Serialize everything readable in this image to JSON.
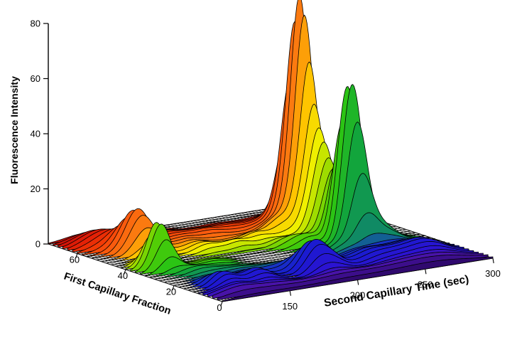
{
  "chart_data": {
    "type": "surface-waterfall-3d",
    "title": "",
    "background": "#FFFFFF",
    "line_color": "#000000",
    "floor_grid": true,
    "z_axis": {
      "label": "Fluorescence Intensity",
      "ticks": [
        0,
        20,
        40,
        60,
        80
      ],
      "range": [
        0,
        80
      ]
    },
    "time_axis": {
      "label": "Second Capillary Time (sec)",
      "ticks": [
        150,
        200,
        250,
        300
      ],
      "range": [
        100,
        300
      ]
    },
    "fraction_axis": {
      "label": "First Capillary Fraction",
      "ticks": [
        0,
        20,
        40,
        60
      ],
      "range": [
        0,
        72
      ]
    },
    "trace_step": 2,
    "colormap": [
      [
        0,
        "#30096E"
      ],
      [
        4,
        "#4813A8"
      ],
      [
        8,
        "#2B13D2"
      ],
      [
        14,
        "#1B1BD0"
      ],
      [
        20,
        "#1633C4"
      ],
      [
        24,
        "#108A64"
      ],
      [
        28,
        "#12A53C"
      ],
      [
        32,
        "#2BC414"
      ],
      [
        36,
        "#52CE06"
      ],
      [
        40,
        "#9EDC00"
      ],
      [
        44,
        "#EFEF00"
      ],
      [
        48,
        "#FFC400"
      ],
      [
        52,
        "#FB7A10"
      ],
      [
        56,
        "#F95A0E"
      ],
      [
        60,
        "#F23A06"
      ],
      [
        64,
        "#E42106"
      ],
      [
        68,
        "#D41408"
      ],
      [
        72,
        "#C4100A"
      ]
    ],
    "peak_format": [
      "fraction",
      "time_sec",
      "intensity",
      "sigma_fraction",
      "sigma_time"
    ],
    "peaks": [
      [
        52,
        250,
        74,
        4,
        6.5
      ],
      [
        52,
        249,
        9,
        6,
        15
      ],
      [
        42,
        250,
        28,
        4,
        8
      ],
      [
        31,
        246,
        34,
        3.5,
        5.5
      ],
      [
        31,
        253,
        32,
        3.5,
        5.5
      ],
      [
        28,
        258,
        8,
        4,
        10
      ],
      [
        27,
        269,
        3,
        4,
        12
      ],
      [
        54,
        134,
        15,
        4.2,
        9
      ],
      [
        37,
        119,
        17,
        3.2,
        7
      ],
      [
        65,
        125,
        4.8,
        5,
        13
      ],
      [
        66,
        156,
        2.4,
        5,
        12
      ],
      [
        14,
        125,
        4.8,
        4,
        8
      ],
      [
        13,
        149,
        4.5,
        4,
        9
      ],
      [
        14,
        191,
        9,
        4.2,
        8
      ],
      [
        14,
        203,
        5,
        4,
        8
      ],
      [
        15,
        232,
        3,
        5,
        12
      ],
      [
        12,
        257,
        4,
        6,
        18
      ],
      [
        13,
        274,
        3.2,
        5,
        12
      ],
      [
        3,
        195,
        2.3,
        3,
        35
      ],
      [
        2,
        258,
        1.8,
        3,
        28
      ],
      [
        5,
        115,
        2,
        3,
        12
      ],
      [
        4,
        135,
        1.5,
        3,
        15
      ],
      [
        58,
        170,
        2,
        5,
        12
      ],
      [
        57,
        192,
        2.2,
        4,
        10
      ],
      [
        60,
        212,
        1.5,
        4,
        10
      ],
      [
        50,
        165,
        1.8,
        4,
        10
      ],
      [
        44,
        168,
        2.2,
        3,
        9
      ],
      [
        43,
        188,
        2.8,
        3,
        8
      ],
      [
        46,
        207,
        3.2,
        3,
        8
      ],
      [
        48,
        227,
        4,
        3,
        8
      ],
      [
        38,
        215,
        2.6,
        3,
        9
      ],
      [
        35,
        227,
        3.5,
        3,
        8
      ],
      [
        26,
        237,
        3.5,
        3,
        10
      ],
      [
        24,
        150,
        1.4,
        3,
        14
      ],
      [
        28,
        131,
        2,
        3,
        10
      ],
      [
        33,
        152,
        1.5,
        3,
        10
      ],
      [
        20,
        175,
        1.5,
        3,
        12
      ]
    ]
  }
}
